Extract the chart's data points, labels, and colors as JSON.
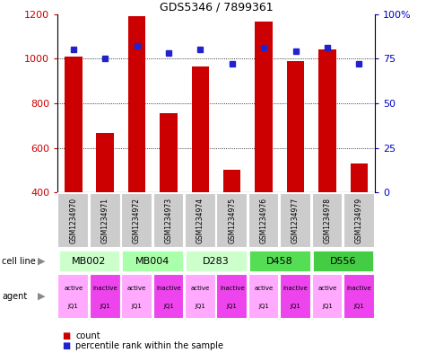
{
  "title": "GDS5346 / 7899361",
  "samples": [
    "GSM1234970",
    "GSM1234971",
    "GSM1234972",
    "GSM1234973",
    "GSM1234974",
    "GSM1234975",
    "GSM1234976",
    "GSM1234977",
    "GSM1234978",
    "GSM1234979"
  ],
  "bar_heights": [
    1010,
    665,
    1190,
    755,
    965,
    500,
    1165,
    990,
    1040,
    530
  ],
  "percentile_values": [
    80,
    75,
    82,
    78,
    80,
    72,
    81,
    79,
    81,
    72
  ],
  "ylim_left": [
    400,
    1200
  ],
  "ylim_right": [
    0,
    100
  ],
  "yticks_left": [
    400,
    600,
    800,
    1000,
    1200
  ],
  "yticks_right": [
    0,
    25,
    50,
    75,
    100
  ],
  "bar_color": "#cc0000",
  "dot_color": "#2222cc",
  "cell_lines": [
    {
      "label": "MB002",
      "span": [
        0,
        2
      ],
      "color": "#ccffcc"
    },
    {
      "label": "MB004",
      "span": [
        2,
        4
      ],
      "color": "#aaffaa"
    },
    {
      "label": "D283",
      "span": [
        4,
        6
      ],
      "color": "#ccffcc"
    },
    {
      "label": "D458",
      "span": [
        6,
        8
      ],
      "color": "#55dd55"
    },
    {
      "label": "D556",
      "span": [
        8,
        10
      ],
      "color": "#44cc44"
    }
  ],
  "agents": [
    {
      "label": "active\nJQ1",
      "col": 0,
      "color": "#ffaaff"
    },
    {
      "label": "inactive\nJQ1",
      "col": 1,
      "color": "#ee44ee"
    },
    {
      "label": "active\nJQ1",
      "col": 2,
      "color": "#ffaaff"
    },
    {
      "label": "inactive\nJQ1",
      "col": 3,
      "color": "#ee44ee"
    },
    {
      "label": "active\nJQ1",
      "col": 4,
      "color": "#ffaaff"
    },
    {
      "label": "inactive\nJQ1",
      "col": 5,
      "color": "#ee44ee"
    },
    {
      "label": "active\nJQ1",
      "col": 6,
      "color": "#ffaaff"
    },
    {
      "label": "inactive\nJQ1",
      "col": 7,
      "color": "#ee44ee"
    },
    {
      "label": "active\nJQ1",
      "col": 8,
      "color": "#ffaaff"
    },
    {
      "label": "inactive\nJQ1",
      "col": 9,
      "color": "#ee44ee"
    }
  ],
  "tick_color_left": "#cc0000",
  "tick_color_right": "#0000cc",
  "sample_label_bg": "#cccccc",
  "legend_count_color": "#cc0000",
  "legend_pct_color": "#2222cc",
  "grid_dotted_ticks": [
    600,
    800,
    1000
  ],
  "right_tick_labels": [
    "0",
    "25",
    "50",
    "75",
    "100%"
  ]
}
